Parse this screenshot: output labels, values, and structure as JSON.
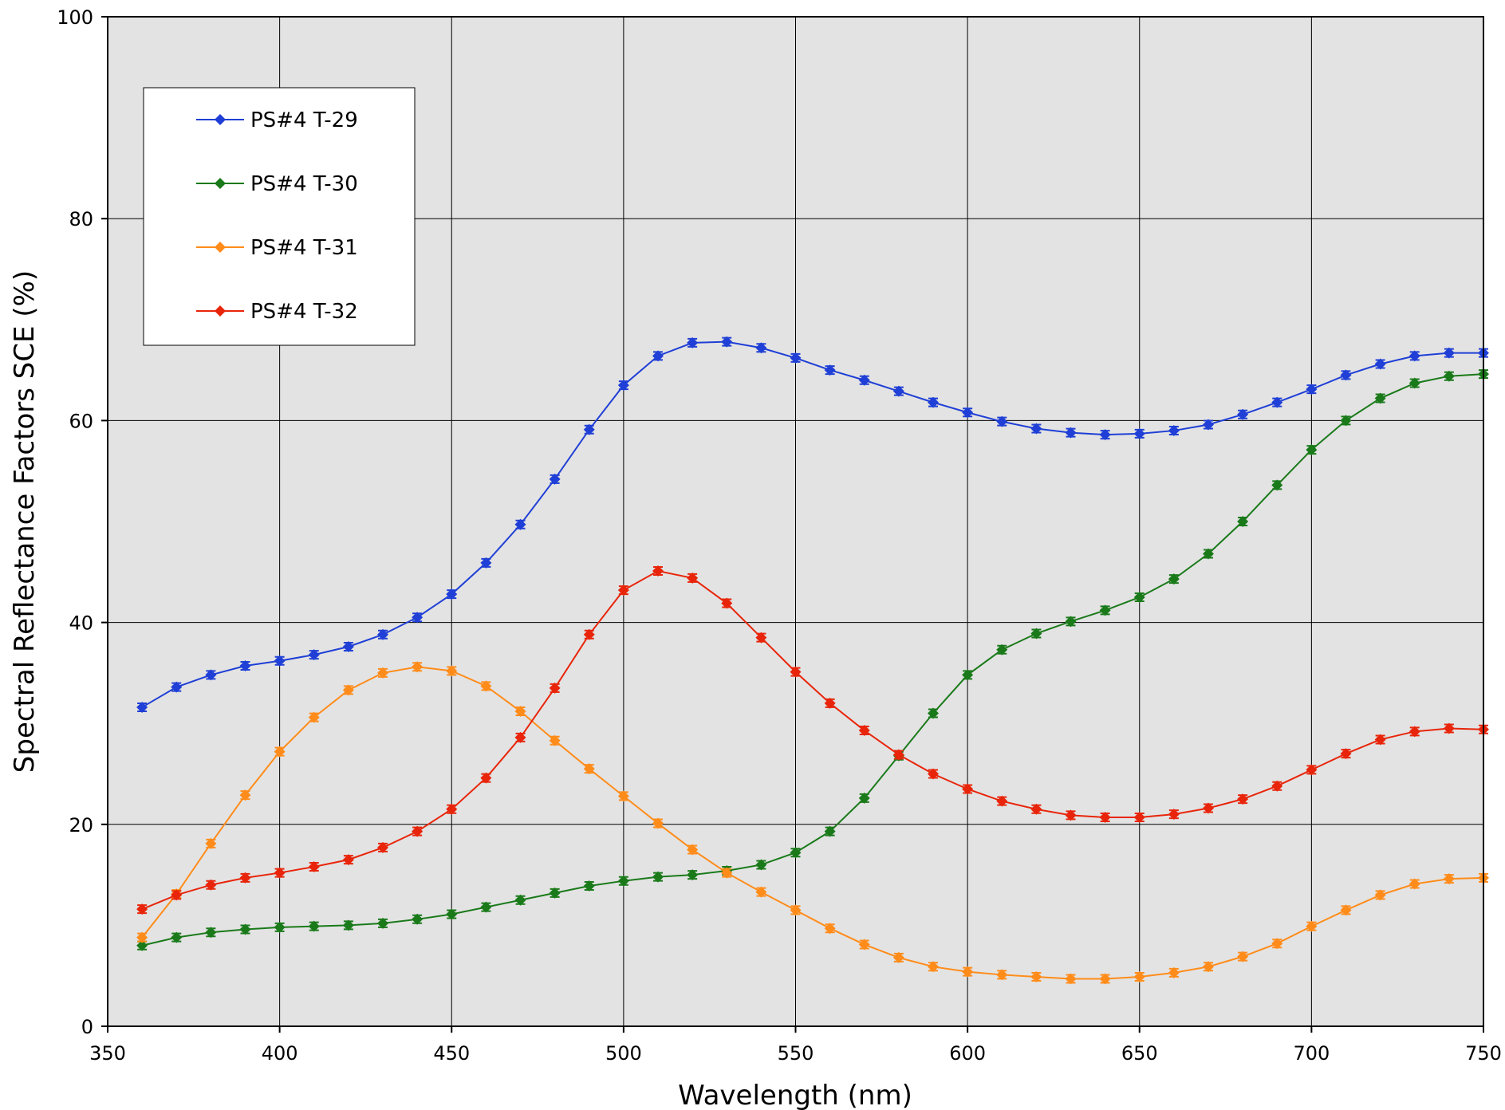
{
  "chart_data": {
    "type": "line",
    "title": "",
    "xlabel": "Wavelength (nm)",
    "ylabel": "Spectral Reflectance Factors SCE (%)",
    "xlim": [
      350,
      750
    ],
    "ylim": [
      0,
      100
    ],
    "xticks": [
      350,
      400,
      450,
      500,
      550,
      600,
      650,
      700,
      750
    ],
    "yticks": [
      0,
      20,
      40,
      60,
      80,
      100
    ],
    "grid": true,
    "legend_position": "top-left",
    "error_bars": true,
    "x": [
      360,
      370,
      380,
      390,
      400,
      410,
      420,
      430,
      440,
      450,
      460,
      470,
      480,
      490,
      500,
      510,
      520,
      530,
      540,
      550,
      560,
      570,
      580,
      590,
      600,
      610,
      620,
      630,
      640,
      650,
      660,
      670,
      680,
      690,
      700,
      710,
      720,
      730,
      740,
      750
    ],
    "series": [
      {
        "name": "PS#4 T-29",
        "color": "#1f3fd6",
        "values": [
          31.6,
          33.6,
          34.8,
          35.7,
          36.2,
          36.8,
          37.6,
          38.8,
          40.5,
          42.8,
          45.9,
          49.7,
          54.2,
          59.1,
          63.5,
          66.4,
          67.7,
          67.8,
          67.2,
          66.2,
          65.0,
          64.0,
          62.9,
          61.8,
          60.8,
          59.9,
          59.2,
          58.8,
          58.6,
          58.7,
          59.0,
          59.6,
          60.6,
          61.8,
          63.1,
          64.5,
          65.6,
          66.4,
          66.7,
          66.7
        ]
      },
      {
        "name": "PS#4 T-30",
        "color": "#1a7a1a",
        "values": [
          8.0,
          8.8,
          9.3,
          9.6,
          9.8,
          9.9,
          10.0,
          10.2,
          10.6,
          11.1,
          11.8,
          12.5,
          13.2,
          13.9,
          14.4,
          14.8,
          15.0,
          15.4,
          16.0,
          17.2,
          19.3,
          22.6,
          26.8,
          31.0,
          34.8,
          37.3,
          38.9,
          40.1,
          41.2,
          42.5,
          44.3,
          46.8,
          50.0,
          53.6,
          57.1,
          60.0,
          62.2,
          63.7,
          64.4,
          64.6
        ]
      },
      {
        "name": "PS#4 T-31",
        "color": "#ff8c1a",
        "values": [
          8.8,
          13.1,
          18.1,
          22.9,
          27.2,
          30.6,
          33.3,
          35.0,
          35.6,
          35.2,
          33.7,
          31.2,
          28.3,
          25.5,
          22.8,
          20.1,
          17.5,
          15.2,
          13.3,
          11.5,
          9.7,
          8.1,
          6.8,
          5.9,
          5.4,
          5.1,
          4.9,
          4.7,
          4.7,
          4.9,
          5.3,
          5.9,
          6.9,
          8.2,
          9.9,
          11.5,
          13.0,
          14.1,
          14.6,
          14.7
        ]
      },
      {
        "name": "PS#4 T-32",
        "color": "#e8250a",
        "values": [
          11.6,
          13.0,
          14.0,
          14.7,
          15.2,
          15.8,
          16.5,
          17.7,
          19.3,
          21.5,
          24.6,
          28.6,
          33.5,
          38.8,
          43.2,
          45.1,
          44.4,
          41.9,
          38.5,
          35.1,
          32.0,
          29.3,
          26.9,
          25.0,
          23.5,
          22.3,
          21.5,
          20.9,
          20.7,
          20.7,
          21.0,
          21.6,
          22.5,
          23.8,
          25.4,
          27.0,
          28.4,
          29.2,
          29.5,
          29.4
        ]
      }
    ]
  }
}
